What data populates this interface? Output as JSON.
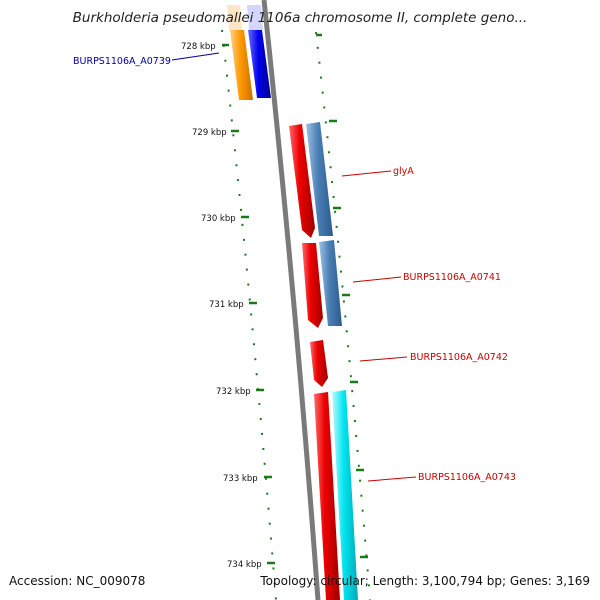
{
  "title": "Burkholderia pseudomallei 1106a chromosome II, complete geno...",
  "footer": {
    "accession": "Accession: NC_009078",
    "summary": "Topology: circular; Length: 3,100,794 bp; Genes: 3,169"
  },
  "ticks": [
    "728 kbp",
    "729 kbp",
    "730 kbp",
    "731 kbp",
    "732 kbp",
    "733 kbp",
    "734 kbp"
  ],
  "genes": [
    {
      "label": "BURPS1106A_A0739",
      "color": "#0000a0"
    },
    {
      "label": "glyA",
      "color": "#cc0000"
    },
    {
      "label": "BURPS1106A_A0741",
      "color": "#cc0000"
    },
    {
      "label": "BURPS1106A_A0742",
      "color": "#cc0000"
    },
    {
      "label": "BURPS1106A_A0743",
      "color": "#cc0000"
    }
  ],
  "colors": {
    "backbone": "#7a7a7a",
    "tick_green": "#1a7a1a",
    "cds_red": "#ee0000",
    "orange": "#ff9900",
    "blue": "#0000ee",
    "steelblue": "#4a7fb5",
    "cyan": "#00e5f0"
  }
}
